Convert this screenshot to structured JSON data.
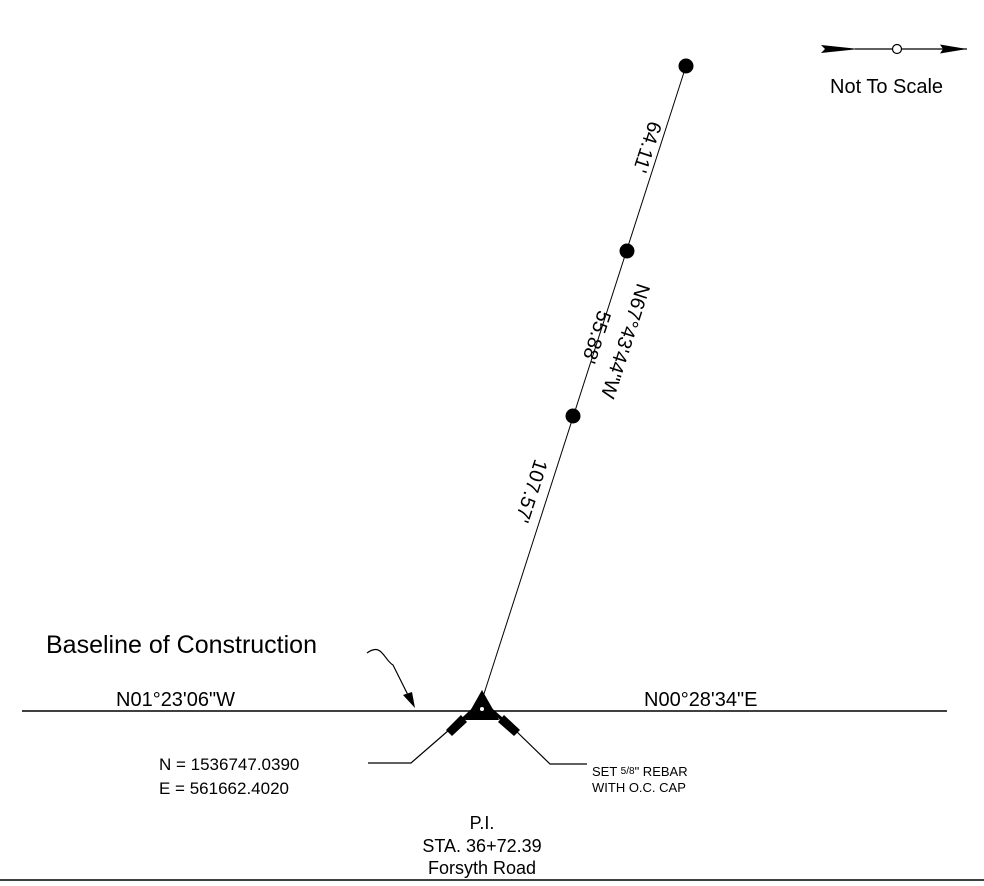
{
  "north_arrow": {
    "icon": "north-arrow-icon",
    "note": "Not To Scale"
  },
  "baseline": {
    "label": "Baseline of Construction",
    "bearing_left": "N01°23'06\"W",
    "bearing_right": "N00°28'34\"E"
  },
  "offset_line": {
    "bearing": "N67°43'44\"W",
    "segments": [
      "107.57'",
      "55.88'",
      "64.11'"
    ]
  },
  "pi_coordinates": {
    "north": "N = 1536747.0390",
    "east": "E = 561662.4020"
  },
  "monument_note": {
    "line1_prefix": "SET ",
    "fraction": "5/8",
    "line1_suffix": "\" REBAR",
    "line2": "WITH O.C. CAP"
  },
  "pi_label": {
    "title": "P.I.",
    "station": "STA. 36+72.39",
    "road": "Forsyth Road"
  }
}
